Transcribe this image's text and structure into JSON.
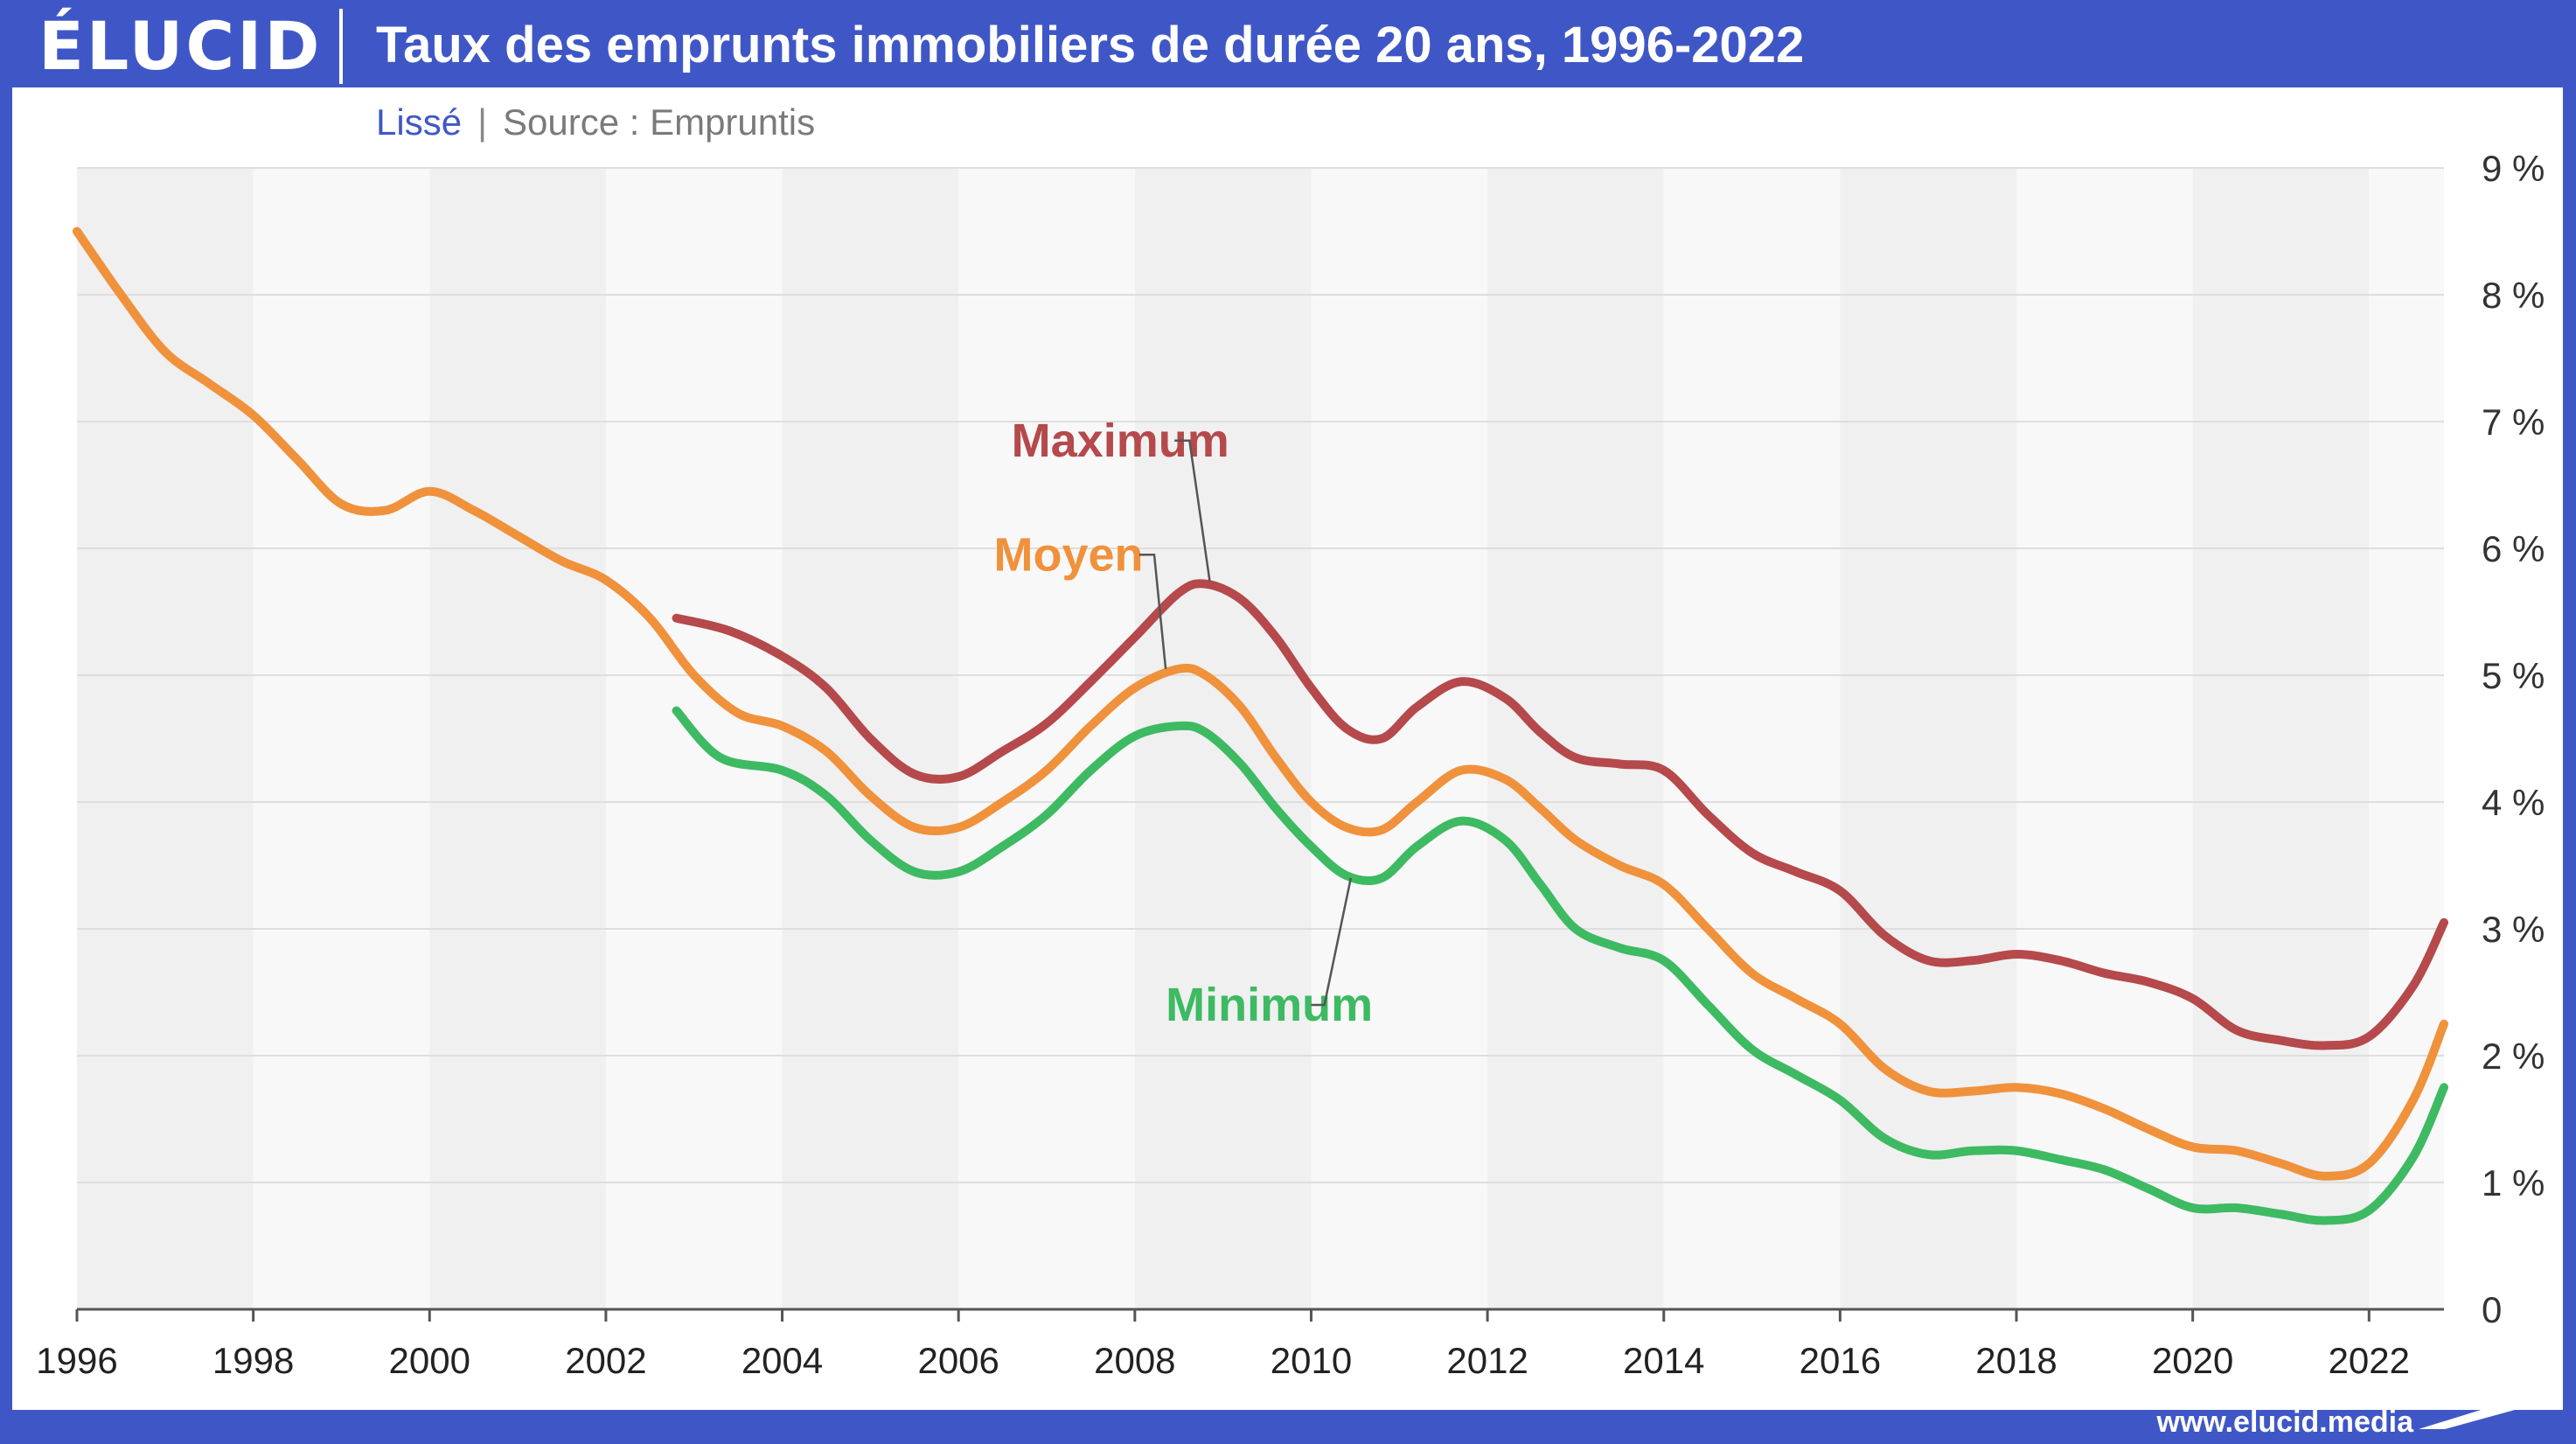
{
  "header": {
    "logo": "ÉLUCID",
    "title": "Taux des emprunts immobiliers de durée 20 ans, 1996-2022"
  },
  "subtitle": {
    "smoothing": "Lissé",
    "separator": "|",
    "source": "Source : Empruntis"
  },
  "footer": {
    "url": "www.elucid.media"
  },
  "colors": {
    "max": "#b5494b",
    "avg": "#f0913c",
    "min": "#3dba62",
    "band_dark": "#f0f0f0",
    "band_light": "#f8f8f8",
    "brand": "#3f57c6"
  },
  "chart_data": {
    "type": "line",
    "title": "Taux des emprunts immobiliers de durée 20 ans, 1996-2022",
    "xlim": [
      1996,
      2022.85
    ],
    "ylim": [
      0,
      9
    ],
    "x_ticks": [
      "1996",
      "1998",
      "2000",
      "2002",
      "2004",
      "2006",
      "2008",
      "2010",
      "2012",
      "2014",
      "2016",
      "2018",
      "2020",
      "2022"
    ],
    "y_ticks": [
      "0",
      "1 %",
      "2 %",
      "3 %",
      "4 %",
      "5 %",
      "6 %",
      "7 %",
      "8 %",
      "9 %"
    ],
    "y_axis_side": "right",
    "grid": "horizontal",
    "series": [
      {
        "name": "Maximum",
        "color_key": "max",
        "points": [
          [
            2002.8,
            5.45
          ],
          [
            2003.4,
            5.35
          ],
          [
            2004.0,
            5.15
          ],
          [
            2004.5,
            4.9
          ],
          [
            2005.0,
            4.5
          ],
          [
            2005.5,
            4.22
          ],
          [
            2006.0,
            4.2
          ],
          [
            2006.5,
            4.4
          ],
          [
            2007.0,
            4.62
          ],
          [
            2007.5,
            4.95
          ],
          [
            2008.0,
            5.3
          ],
          [
            2008.5,
            5.65
          ],
          [
            2008.8,
            5.72
          ],
          [
            2009.2,
            5.6
          ],
          [
            2009.6,
            5.3
          ],
          [
            2010.0,
            4.9
          ],
          [
            2010.4,
            4.58
          ],
          [
            2010.8,
            4.5
          ],
          [
            2011.2,
            4.75
          ],
          [
            2011.7,
            4.95
          ],
          [
            2012.2,
            4.82
          ],
          [
            2012.6,
            4.55
          ],
          [
            2013.0,
            4.35
          ],
          [
            2013.5,
            4.3
          ],
          [
            2014.0,
            4.25
          ],
          [
            2014.5,
            3.9
          ],
          [
            2015.0,
            3.6
          ],
          [
            2015.5,
            3.45
          ],
          [
            2016.0,
            3.3
          ],
          [
            2016.5,
            2.95
          ],
          [
            2017.0,
            2.75
          ],
          [
            2017.5,
            2.75
          ],
          [
            2018.0,
            2.8
          ],
          [
            2018.5,
            2.75
          ],
          [
            2019.0,
            2.65
          ],
          [
            2019.5,
            2.58
          ],
          [
            2020.0,
            2.45
          ],
          [
            2020.5,
            2.2
          ],
          [
            2021.0,
            2.12
          ],
          [
            2021.5,
            2.08
          ],
          [
            2022.0,
            2.15
          ],
          [
            2022.5,
            2.55
          ],
          [
            2022.85,
            3.05
          ]
        ]
      },
      {
        "name": "Moyen",
        "color_key": "avg",
        "points": [
          [
            1996.0,
            8.5
          ],
          [
            1996.5,
            8.0
          ],
          [
            1997.0,
            7.55
          ],
          [
            1997.5,
            7.3
          ],
          [
            1998.0,
            7.05
          ],
          [
            1998.5,
            6.7
          ],
          [
            1999.0,
            6.35
          ],
          [
            1999.5,
            6.3
          ],
          [
            2000.0,
            6.45
          ],
          [
            2000.5,
            6.3
          ],
          [
            2001.0,
            6.1
          ],
          [
            2001.5,
            5.9
          ],
          [
            2002.0,
            5.75
          ],
          [
            2002.5,
            5.45
          ],
          [
            2003.0,
            5.0
          ],
          [
            2003.5,
            4.7
          ],
          [
            2004.0,
            4.6
          ],
          [
            2004.5,
            4.4
          ],
          [
            2005.0,
            4.05
          ],
          [
            2005.5,
            3.8
          ],
          [
            2006.0,
            3.8
          ],
          [
            2006.5,
            4.0
          ],
          [
            2007.0,
            4.25
          ],
          [
            2007.5,
            4.6
          ],
          [
            2008.0,
            4.9
          ],
          [
            2008.5,
            5.05
          ],
          [
            2008.8,
            5.0
          ],
          [
            2009.2,
            4.75
          ],
          [
            2009.6,
            4.35
          ],
          [
            2010.0,
            4.0
          ],
          [
            2010.4,
            3.8
          ],
          [
            2010.8,
            3.78
          ],
          [
            2011.2,
            4.0
          ],
          [
            2011.7,
            4.25
          ],
          [
            2012.2,
            4.18
          ],
          [
            2012.6,
            3.95
          ],
          [
            2013.0,
            3.7
          ],
          [
            2013.5,
            3.5
          ],
          [
            2014.0,
            3.35
          ],
          [
            2014.5,
            3.0
          ],
          [
            2015.0,
            2.65
          ],
          [
            2015.5,
            2.45
          ],
          [
            2016.0,
            2.25
          ],
          [
            2016.5,
            1.9
          ],
          [
            2017.0,
            1.72
          ],
          [
            2017.5,
            1.72
          ],
          [
            2018.0,
            1.75
          ],
          [
            2018.5,
            1.7
          ],
          [
            2019.0,
            1.58
          ],
          [
            2019.5,
            1.42
          ],
          [
            2020.0,
            1.28
          ],
          [
            2020.5,
            1.25
          ],
          [
            2021.0,
            1.15
          ],
          [
            2021.5,
            1.05
          ],
          [
            2022.0,
            1.15
          ],
          [
            2022.5,
            1.65
          ],
          [
            2022.85,
            2.25
          ]
        ]
      },
      {
        "name": "Minimum",
        "color_key": "min",
        "points": [
          [
            2002.8,
            4.72
          ],
          [
            2003.3,
            4.35
          ],
          [
            2004.0,
            4.25
          ],
          [
            2004.5,
            4.05
          ],
          [
            2005.0,
            3.7
          ],
          [
            2005.5,
            3.45
          ],
          [
            2006.0,
            3.45
          ],
          [
            2006.5,
            3.65
          ],
          [
            2007.0,
            3.9
          ],
          [
            2007.5,
            4.25
          ],
          [
            2008.0,
            4.52
          ],
          [
            2008.5,
            4.6
          ],
          [
            2008.8,
            4.55
          ],
          [
            2009.2,
            4.3
          ],
          [
            2009.6,
            3.95
          ],
          [
            2010.0,
            3.65
          ],
          [
            2010.4,
            3.42
          ],
          [
            2010.8,
            3.4
          ],
          [
            2011.2,
            3.65
          ],
          [
            2011.7,
            3.85
          ],
          [
            2012.2,
            3.7
          ],
          [
            2012.6,
            3.35
          ],
          [
            2013.0,
            3.0
          ],
          [
            2013.5,
            2.85
          ],
          [
            2014.0,
            2.75
          ],
          [
            2014.5,
            2.4
          ],
          [
            2015.0,
            2.05
          ],
          [
            2015.5,
            1.85
          ],
          [
            2016.0,
            1.65
          ],
          [
            2016.5,
            1.35
          ],
          [
            2017.0,
            1.22
          ],
          [
            2017.5,
            1.25
          ],
          [
            2018.0,
            1.25
          ],
          [
            2018.5,
            1.18
          ],
          [
            2019.0,
            1.1
          ],
          [
            2019.5,
            0.95
          ],
          [
            2020.0,
            0.8
          ],
          [
            2020.5,
            0.8
          ],
          [
            2021.0,
            0.75
          ],
          [
            2021.5,
            0.7
          ],
          [
            2022.0,
            0.78
          ],
          [
            2022.5,
            1.2
          ],
          [
            2022.85,
            1.75
          ]
        ]
      }
    ],
    "annotations": [
      {
        "label": "Maximum",
        "series": "Maximum",
        "color_key": "max",
        "label_x": 2006.6,
        "label_y": 6.85,
        "leader": [
          [
            2008.45,
            6.85
          ],
          [
            2008.62,
            6.85
          ],
          [
            2008.85,
            5.74
          ]
        ]
      },
      {
        "label": "Moyen",
        "series": "Moyen",
        "color_key": "avg",
        "label_x": 2006.4,
        "label_y": 5.95,
        "leader": [
          [
            2008.05,
            5.95
          ],
          [
            2008.22,
            5.95
          ],
          [
            2008.35,
            5.05
          ]
        ]
      },
      {
        "label": "Minimum",
        "series": "Minimum",
        "color_key": "min",
        "label_x": 2008.35,
        "label_y": 2.4,
        "leader": [
          [
            2010.0,
            2.4
          ],
          [
            2010.15,
            2.4
          ],
          [
            2010.45,
            3.4
          ]
        ]
      }
    ]
  }
}
